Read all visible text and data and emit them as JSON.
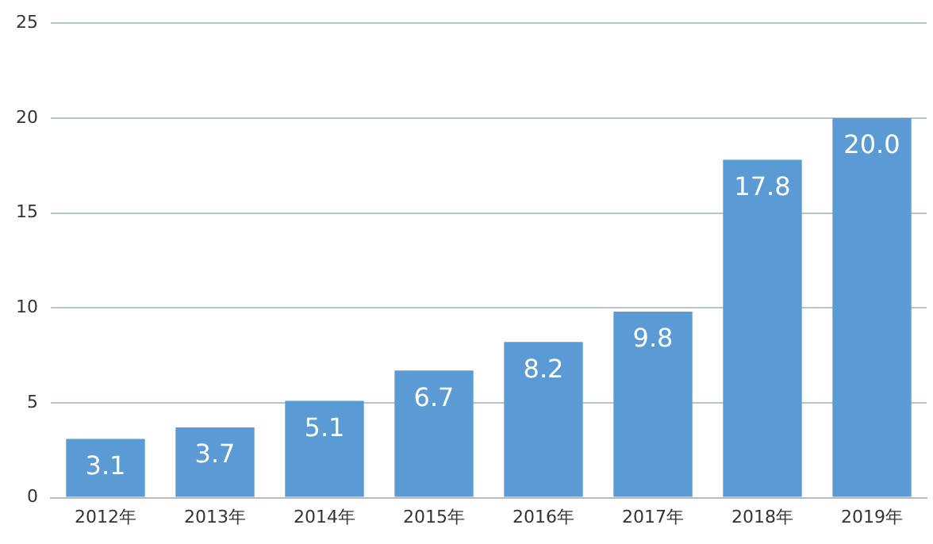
{
  "chart_data": {
    "type": "bar",
    "categories": [
      "2012年",
      "2013年",
      "2014年",
      "2015年",
      "2016年",
      "2017年",
      "2018年",
      "2019年"
    ],
    "values": [
      3.1,
      3.7,
      5.1,
      6.7,
      8.2,
      9.8,
      17.8,
      20.0
    ],
    "value_labels": [
      "3.1",
      "3.7",
      "5.1",
      "6.7",
      "8.2",
      "9.8",
      "17.8",
      "20.0"
    ],
    "color": "#5b9bd5",
    "ylim": [
      0,
      25
    ],
    "yticks": [
      0,
      5,
      10,
      15,
      20,
      25
    ],
    "grid": "y",
    "legend": false
  }
}
